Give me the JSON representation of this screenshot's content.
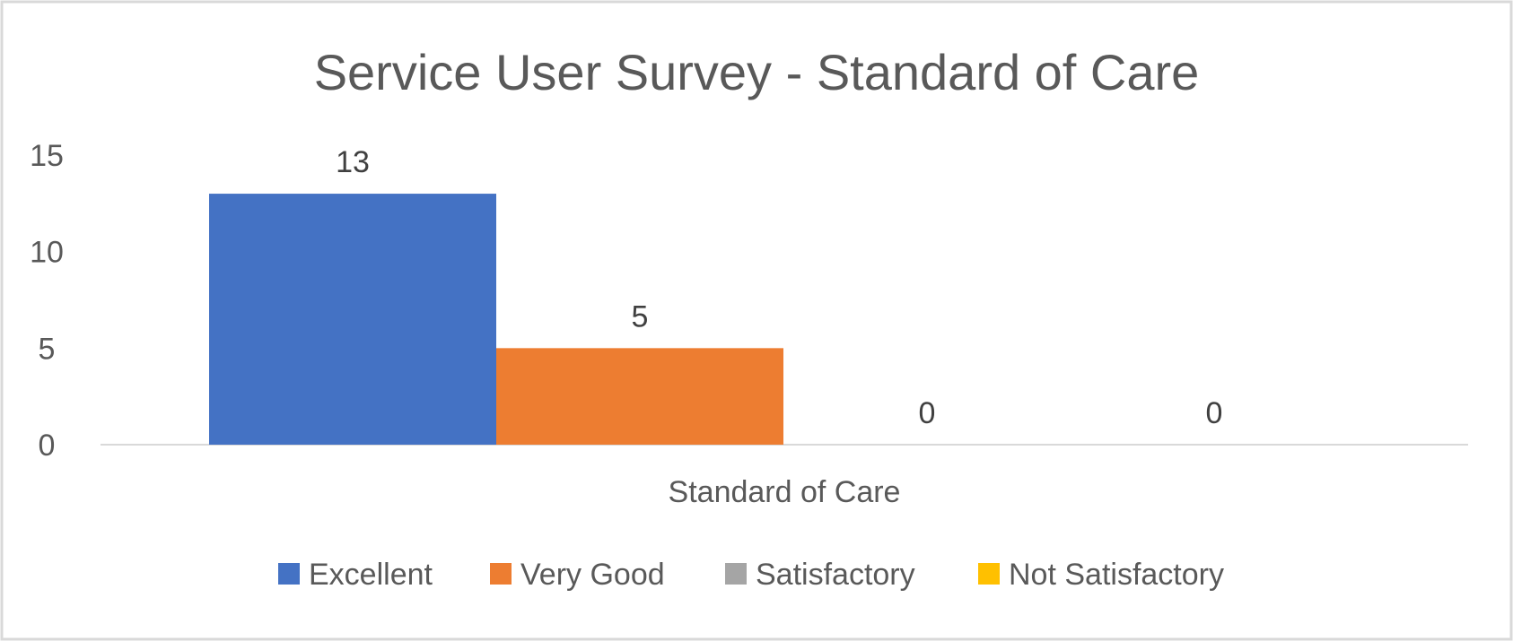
{
  "chart_data": {
    "type": "bar",
    "title": "Service User Survey - Standard of Care",
    "categories": [
      "Standard of Care"
    ],
    "series": [
      {
        "name": "Excellent",
        "values": [
          13
        ],
        "color": "#4472C4"
      },
      {
        "name": "Very Good",
        "values": [
          5
        ],
        "color": "#ED7D31"
      },
      {
        "name": "Satisfactory",
        "values": [
          0
        ],
        "color": "#A5A5A5"
      },
      {
        "name": "Not Satisfactory",
        "values": [
          0
        ],
        "color": "#FFC000"
      }
    ],
    "y_ticks": [
      "15",
      "10",
      "5",
      "0"
    ],
    "ylim": [
      0,
      15
    ],
    "xlabel": "",
    "ylabel": "",
    "grid": false,
    "legend_position": "bottom"
  },
  "colors": {
    "border": "#D9D9D9",
    "axis": "#D9D9D9",
    "text": "#595959"
  }
}
